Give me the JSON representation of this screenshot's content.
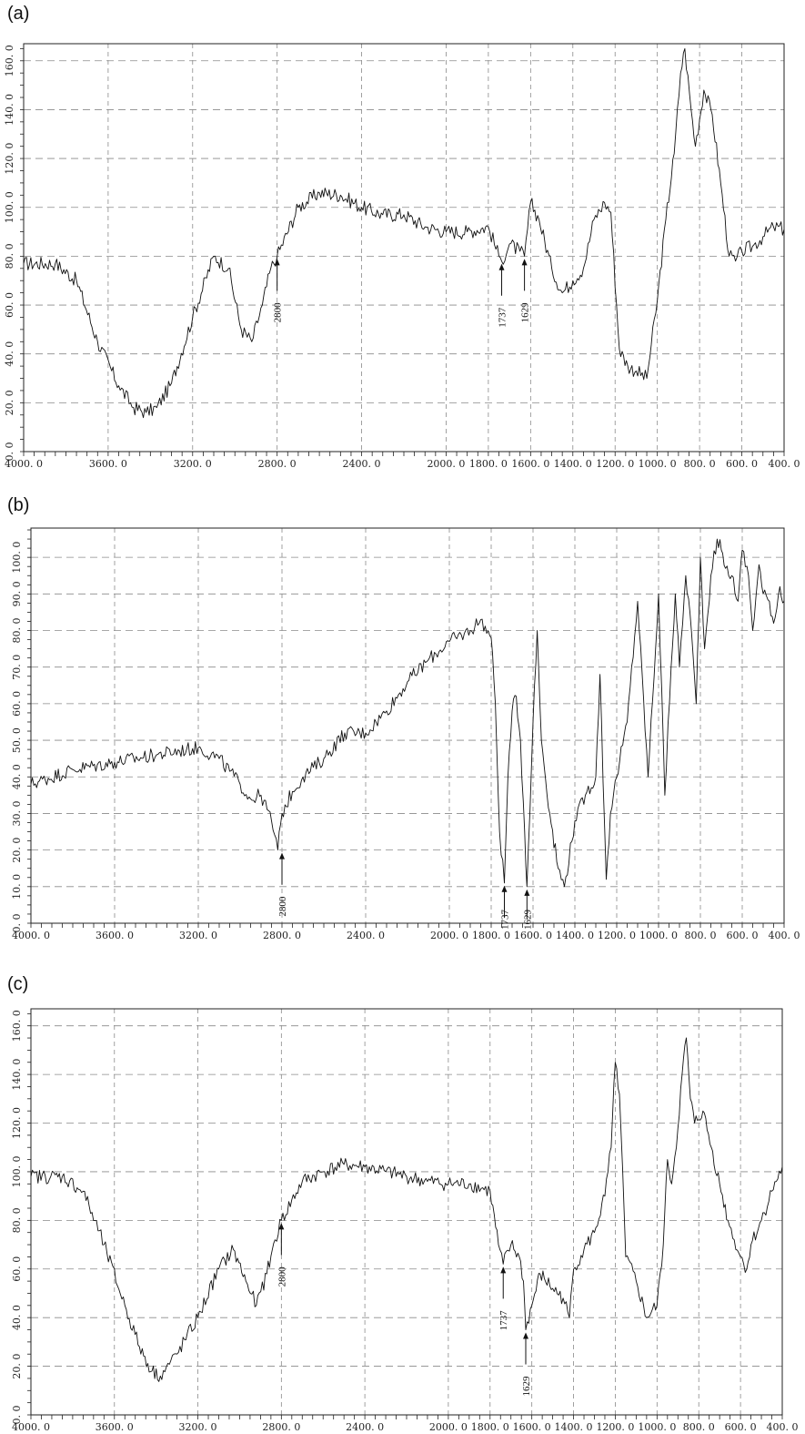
{
  "panels": [
    {
      "label": "(a)",
      "chart_data": {
        "type": "line",
        "xlim": [
          4000,
          400
        ],
        "ylim": [
          0,
          167
        ],
        "grid": true,
        "x_ticks": [
          4000,
          3600,
          3200,
          2800,
          2400,
          2000,
          1800,
          1600,
          1400,
          1200,
          1000,
          800,
          600,
          400
        ],
        "x_tick_labels": [
          "4000. 0",
          "3600. 0",
          "3200. 0",
          "2800. 0",
          "2400. 0",
          "2000. 0",
          "1800. 0",
          "1600. 0",
          "1400. 0",
          "1200. 0",
          "1000. 0",
          "800. 0",
          "600. 0",
          "400. 0"
        ],
        "y_ticks": [
          0,
          20,
          40,
          60,
          80,
          100,
          120,
          140,
          160
        ],
        "y_tick_labels": [
          "0. 0",
          "20. 0",
          "40. 0",
          "60. 0",
          "80. 0",
          "100. 0",
          "120. 0",
          "140. 0",
          "160. 0"
        ],
        "series": [
          {
            "x": [
              4000,
              3850,
              3750,
              3650,
              3550,
              3480,
              3420,
              3370,
              3300,
              3200,
              3100,
              3030,
              2970,
              2920,
              2870,
              2830,
              2800,
              2700,
              2600,
              2500,
              2400,
              2300,
              2200,
              2100,
              2000,
              1900,
              1800,
              1750,
              1737,
              1700,
              1650,
              1629,
              1600,
              1560,
              1500,
              1450,
              1400,
              1350,
              1300,
              1250,
              1220,
              1180,
              1140,
              1100,
              1050,
              1000,
              960,
              920,
              890,
              870,
              840,
              820,
              780,
              740,
              700,
              660,
              630,
              600,
              550,
              500,
              450,
              400
            ],
            "y": [
              77,
              77,
              70,
              45,
              27,
              18,
              16,
              18,
              28,
              55,
              80,
              75,
              50,
              45,
              60,
              75,
              80,
              100,
              106,
              105,
              100,
              97,
              97,
              92,
              90,
              90,
              92,
              80,
              78,
              85,
              82,
              80,
              102,
              95,
              75,
              65,
              70,
              75,
              95,
              102,
              98,
              42,
              35,
              33,
              30,
              62,
              95,
              122,
              155,
              165,
              140,
              125,
              148,
              138,
              110,
              80,
              78,
              82,
              84,
              88,
              92,
              91
            ]
          }
        ],
        "annotations": [
          {
            "label": "2800",
            "x": 2800,
            "y": 80
          },
          {
            "label": "1737",
            "x": 1737,
            "y": 78
          },
          {
            "label": "1629",
            "x": 1629,
            "y": 80
          }
        ]
      }
    },
    {
      "label": "(b)",
      "chart_data": {
        "type": "line",
        "xlim": [
          4000,
          400
        ],
        "ylim": [
          0,
          108
        ],
        "grid": true,
        "x_ticks": [
          4000,
          3600,
          3200,
          2800,
          2400,
          2000,
          1800,
          1600,
          1400,
          1200,
          1000,
          800,
          600,
          400
        ],
        "x_tick_labels": [
          "4000. 0",
          "3600. 0",
          "3200. 0",
          "2800. 0",
          "2400. 0",
          "2000. 0",
          "1800. 0",
          "1600. 0",
          "1400. 0",
          "1200. 0",
          "1000. 0",
          "800. 0",
          "600. 0",
          "400. 0"
        ],
        "y_ticks": [
          0,
          10,
          20,
          30,
          40,
          50,
          60,
          70,
          80,
          90,
          100
        ],
        "y_tick_labels": [
          "0. 0",
          "10. 0",
          "20. 0",
          "30. 0",
          "40. 0",
          "50. 0",
          "60. 0",
          "70. 0",
          "80. 0",
          "90. 0",
          "100. 0"
        ],
        "series": [
          {
            "x": [
              4000,
              3800,
              3600,
              3400,
              3200,
              3100,
              3000,
              2950,
              2900,
              2850,
              2820,
              2800,
              2750,
              2700,
              2600,
              2500,
              2400,
              2300,
              2200,
              2100,
              2000,
              1900,
              1850,
              1800,
              1780,
              1760,
              1737,
              1720,
              1700,
              1680,
              1660,
              1640,
              1629,
              1600,
              1580,
              1560,
              1520,
              1480,
              1450,
              1400,
              1350,
              1300,
              1280,
              1250,
              1230,
              1200,
              1150,
              1100,
              1050,
              1000,
              970,
              940,
              920,
              900,
              870,
              850,
              820,
              800,
              780,
              750,
              720,
              700,
              680,
              650,
              620,
              600,
              570,
              550,
              520,
              500,
              470,
              450,
              420,
              400
            ],
            "y": [
              38,
              42,
              44,
              46,
              48,
              45,
              38,
              34,
              35,
              28,
              20,
              30,
              36,
              40,
              45,
              52,
              52,
              58,
              66,
              72,
              77,
              80,
              83,
              78,
              60,
              25,
              11,
              40,
              58,
              62,
              50,
              25,
              10,
              55,
              80,
              50,
              30,
              15,
              10,
              28,
              35,
              40,
              68,
              12,
              30,
              40,
              55,
              88,
              40,
              90,
              35,
              70,
              90,
              70,
              95,
              85,
              60,
              100,
              75,
              95,
              105,
              102,
              97,
              95,
              88,
              102,
              95,
              80,
              98,
              90,
              88,
              82,
              92,
              88
            ]
          }
        ],
        "annotations": [
          {
            "label": "2800",
            "x": 2800,
            "y": 20
          },
          {
            "label": "1737",
            "x": 1737,
            "y": 11
          },
          {
            "label": "1629",
            "x": 1629,
            "y": 10
          }
        ]
      }
    },
    {
      "label": "(c)",
      "chart_data": {
        "type": "line",
        "xlim": [
          4000,
          400
        ],
        "ylim": [
          0,
          167
        ],
        "grid": true,
        "x_ticks": [
          4000,
          3600,
          3200,
          2800,
          2400,
          2000,
          1800,
          1600,
          1400,
          1200,
          1000,
          800,
          600,
          400
        ],
        "x_tick_labels": [
          "4000. 0",
          "3600. 0",
          "3200. 0",
          "2800. 0",
          "2400. 0",
          "2000. 0",
          "1800. 0",
          "1600. 0",
          "1400. 0",
          "1200. 0",
          "1000. 0",
          "800. 0",
          "600. 0",
          "400. 0"
        ],
        "y_ticks": [
          0,
          20,
          40,
          60,
          80,
          100,
          120,
          140,
          160
        ],
        "y_tick_labels": [
          "0. 0",
          "20. 0",
          "40. 0",
          "60. 0",
          "80. 0",
          "100. 0",
          "120. 0",
          "140. 0",
          "160. 0"
        ],
        "series": [
          {
            "x": [
              4000,
              3850,
              3750,
              3650,
              3550,
              3480,
              3420,
              3380,
              3300,
              3200,
              3100,
              3030,
              2970,
              2920,
              2870,
              2830,
              2800,
              2700,
              2600,
              2500,
              2400,
              2300,
              2200,
              2100,
              2000,
              1900,
              1800,
              1760,
              1737,
              1700,
              1660,
              1640,
              1629,
              1600,
              1560,
              1500,
              1450,
              1420,
              1400,
              1350,
              1300,
              1250,
              1220,
              1200,
              1180,
              1150,
              1100,
              1050,
              1000,
              970,
              950,
              930,
              900,
              880,
              860,
              840,
              820,
              780,
              740,
              700,
              660,
              630,
              600,
              570,
              550,
              500,
              450,
              400
            ],
            "y": [
              98,
              98,
              92,
              70,
              45,
              28,
              18,
              16,
              25,
              40,
              60,
              68,
              55,
              45,
              58,
              72,
              80,
              96,
              100,
              103,
              102,
              100,
              98,
              96,
              95,
              95,
              92,
              70,
              62,
              70,
              65,
              55,
              35,
              45,
              58,
              52,
              48,
              40,
              60,
              68,
              75,
              90,
              110,
              145,
              132,
              65,
              55,
              40,
              45,
              70,
              105,
              95,
              118,
              140,
              155,
              130,
              120,
              125,
              110,
              95,
              80,
              72,
              65,
              60,
              70,
              80,
              92,
              102
            ]
          }
        ],
        "annotations": [
          {
            "label": "2800",
            "x": 2800,
            "y": 80
          },
          {
            "label": "1737",
            "x": 1737,
            "y": 62
          },
          {
            "label": "1629",
            "x": 1629,
            "y": 35
          }
        ]
      }
    }
  ],
  "colors": {
    "line": "#111111",
    "grid": "#8a8a8a",
    "frame": "#222222"
  }
}
